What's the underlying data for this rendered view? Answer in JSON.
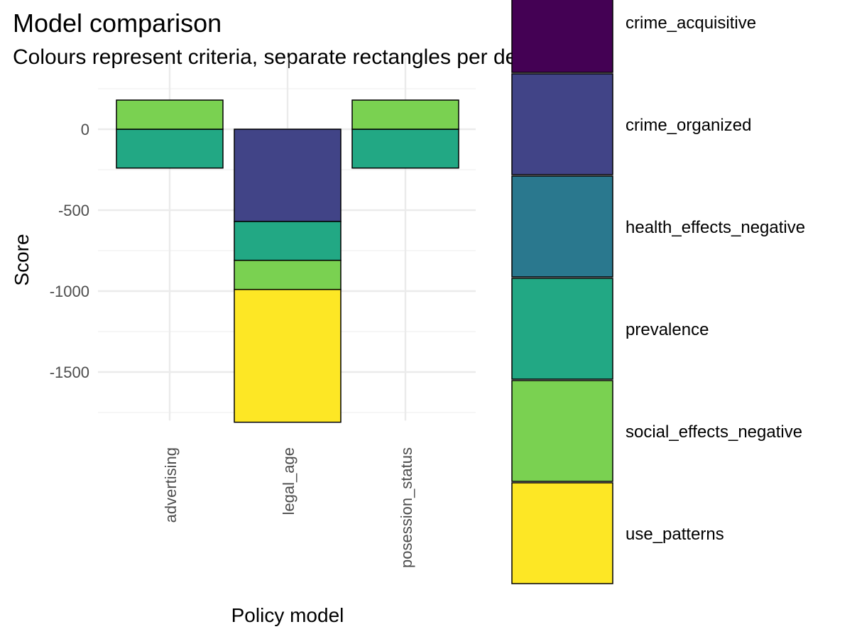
{
  "chart_data": {
    "type": "bar",
    "stacked": true,
    "title": "Model comparison",
    "subtitle": "Colours represent criteria, separate rectangles per decision",
    "xlabel": "Policy model",
    "ylabel": "Score",
    "categories": [
      "advertising",
      "legal_age",
      "posession_status"
    ],
    "ylim": [
      -1800,
      180
    ],
    "yticks": [
      0,
      -500,
      -1000,
      -1500
    ],
    "ytick_labels": [
      "0",
      "-500",
      "-1000",
      "-1500"
    ],
    "grid": true,
    "legend_position": "right",
    "series": [
      {
        "name": "crime_acquisitive",
        "color": "#440154",
        "values": [
          0,
          0,
          0
        ]
      },
      {
        "name": "crime_organized",
        "color": "#414487",
        "values": [
          0,
          -570,
          0
        ]
      },
      {
        "name": "health_effects_negative",
        "color": "#2A788E",
        "values": [
          0,
          0,
          0
        ]
      },
      {
        "name": "prevalence",
        "color": "#22A884",
        "values": [
          -240,
          -240,
          -240
        ]
      },
      {
        "name": "social_effects_negative",
        "color": "#7AD151",
        "values": [
          180,
          -180,
          180
        ]
      },
      {
        "name": "use_patterns",
        "color": "#FDE725",
        "values": [
          0,
          -820,
          0
        ]
      }
    ]
  }
}
